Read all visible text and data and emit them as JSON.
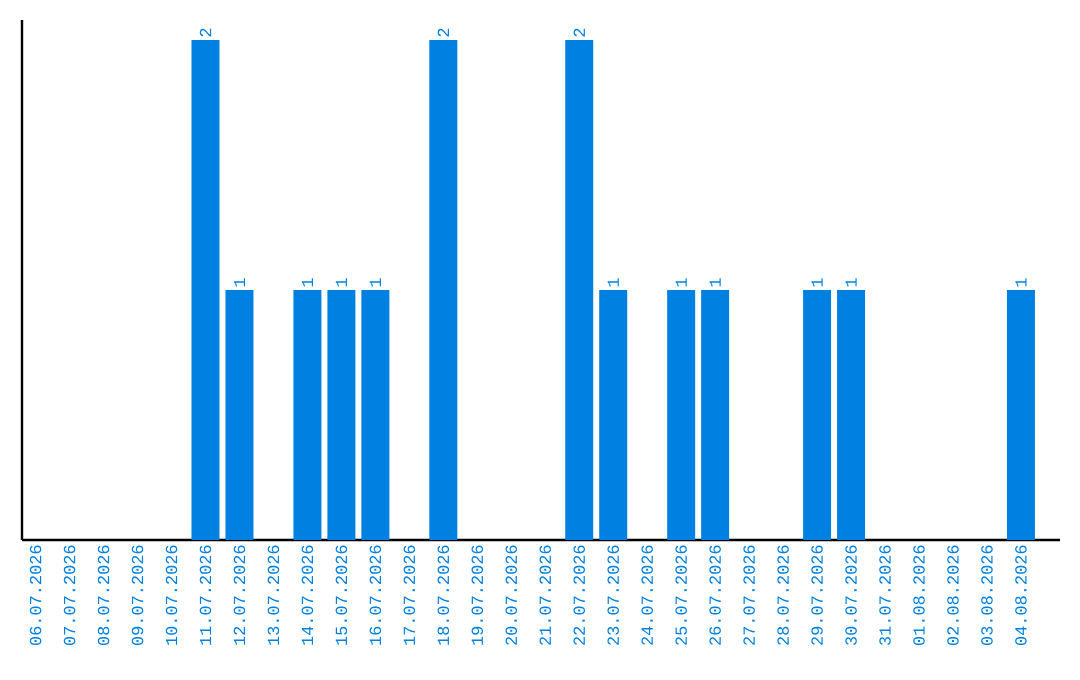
{
  "chart_data": {
    "type": "bar",
    "categories": [
      "06.07.2026",
      "07.07.2026",
      "08.07.2026",
      "09.07.2026",
      "10.07.2026",
      "11.07.2026",
      "12.07.2026",
      "13.07.2026",
      "14.07.2026",
      "15.07.2026",
      "16.07.2026",
      "17.07.2026",
      "18.07.2026",
      "19.07.2026",
      "20.07.2026",
      "21.07.2026",
      "22.07.2026",
      "23.07.2026",
      "24.07.2026",
      "25.07.2026",
      "26.07.2026",
      "27.07.2026",
      "28.07.2026",
      "29.07.2026",
      "30.07.2026",
      "31.07.2026",
      "01.08.2026",
      "02.08.2026",
      "03.08.2026",
      "04.08.2026"
    ],
    "values": [
      0,
      0,
      0,
      0,
      0,
      2,
      1,
      0,
      1,
      1,
      1,
      0,
      2,
      0,
      0,
      0,
      2,
      1,
      0,
      1,
      1,
      0,
      0,
      1,
      1,
      0,
      0,
      0,
      0,
      1
    ],
    "value_labels": [
      null,
      null,
      null,
      null,
      null,
      "2",
      "1",
      null,
      "1",
      "1",
      "1",
      null,
      "2",
      null,
      null,
      null,
      "2",
      "1",
      null,
      "1",
      "1",
      null,
      null,
      "1",
      "1",
      null,
      null,
      null,
      null,
      "1"
    ],
    "color": "#0080e0",
    "ylim": [
      0,
      2.08
    ],
    "tick_labels": "x"
  }
}
